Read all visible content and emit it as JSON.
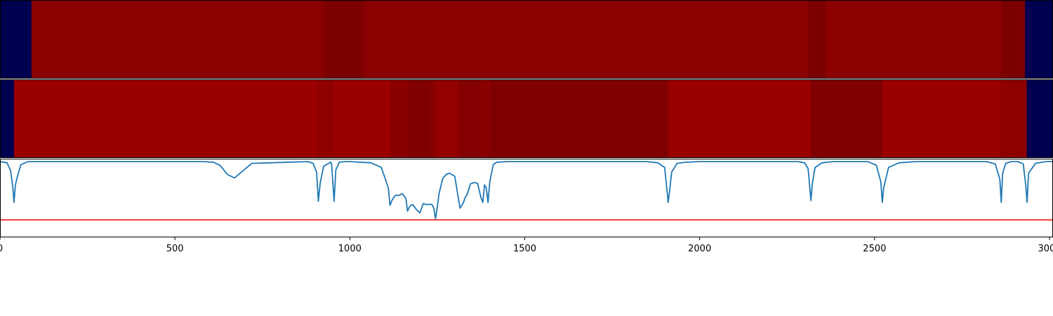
{
  "chart_data": [
    {
      "type": "heatmap",
      "xlim": [
        0,
        3010
      ],
      "segments": [
        {
          "start": 0,
          "end": 90,
          "color": "#000050"
        },
        {
          "start": 90,
          "end": 925,
          "color": "#8b0000"
        },
        {
          "start": 925,
          "end": 1040,
          "color": "#7d0000"
        },
        {
          "start": 1040,
          "end": 2310,
          "color": "#8b0000"
        },
        {
          "start": 2310,
          "end": 2360,
          "color": "#7d0000"
        },
        {
          "start": 2360,
          "end": 2862,
          "color": "#8b0000"
        },
        {
          "start": 2862,
          "end": 2930,
          "color": "#7d0000"
        },
        {
          "start": 2930,
          "end": 3010,
          "color": "#000050"
        }
      ]
    },
    {
      "type": "heatmap",
      "xlim": [
        0,
        3010
      ],
      "segments": [
        {
          "start": 0,
          "end": 40,
          "color": "#000050"
        },
        {
          "start": 40,
          "end": 905,
          "color": "#9a0000"
        },
        {
          "start": 905,
          "end": 955,
          "color": "#900000"
        },
        {
          "start": 955,
          "end": 1115,
          "color": "#9a0000"
        },
        {
          "start": 1115,
          "end": 1170,
          "color": "#8a0000"
        },
        {
          "start": 1170,
          "end": 1230,
          "color": "#800000"
        },
        {
          "start": 1230,
          "end": 1245,
          "color": "#880000"
        },
        {
          "start": 1245,
          "end": 1310,
          "color": "#920000"
        },
        {
          "start": 1310,
          "end": 1375,
          "color": "#850000"
        },
        {
          "start": 1375,
          "end": 1400,
          "color": "#8a0000"
        },
        {
          "start": 1400,
          "end": 1910,
          "color": "#7e0000"
        },
        {
          "start": 1910,
          "end": 2318,
          "color": "#9a0000"
        },
        {
          "start": 2318,
          "end": 2522,
          "color": "#7e0000"
        },
        {
          "start": 2522,
          "end": 2860,
          "color": "#9a0000"
        },
        {
          "start": 2860,
          "end": 2935,
          "color": "#8e0000"
        },
        {
          "start": 2935,
          "end": 3010,
          "color": "#000050"
        }
      ]
    },
    {
      "type": "line",
      "xlim": [
        0,
        3010
      ],
      "ylim": [
        -0.3,
        1.05
      ],
      "xticks": [
        0,
        500,
        1000,
        1500,
        2000,
        2500,
        3000
      ],
      "xticklabels": [
        "0",
        "500",
        "1000",
        "1500",
        "2000",
        "2500",
        "3000"
      ],
      "threshold": 0.0,
      "threshold_color": "#ff0000",
      "line_color": "#1f77b4",
      "x": [
        0,
        20,
        30,
        36,
        40,
        44,
        50,
        60,
        80,
        100,
        580,
        610,
        630,
        650,
        670,
        690,
        720,
        880,
        895,
        905,
        910,
        915,
        925,
        945,
        948,
        955,
        960,
        970,
        985,
        1000,
        1060,
        1090,
        1110,
        1115,
        1120,
        1125,
        1130,
        1140,
        1150,
        1160,
        1165,
        1170,
        1175,
        1180,
        1190,
        1200,
        1210,
        1220,
        1230,
        1235,
        1240,
        1245,
        1250,
        1255,
        1265,
        1275,
        1285,
        1300,
        1310,
        1315,
        1325,
        1330,
        1335,
        1345,
        1355,
        1365,
        1375,
        1380,
        1385,
        1390,
        1395,
        1400,
        1410,
        1420,
        1450,
        1850,
        1880,
        1900,
        1910,
        1915,
        1920,
        1935,
        1960,
        2000,
        2280,
        2300,
        2310,
        2318,
        2322,
        2330,
        2350,
        2380,
        2480,
        2505,
        2518,
        2522,
        2526,
        2540,
        2570,
        2620,
        2820,
        2845,
        2858,
        2862,
        2866,
        2875,
        2890,
        2910,
        2925,
        2932,
        2936,
        2940,
        2960,
        2990,
        3010
      ],
      "y": [
        1.0,
        0.98,
        0.85,
        0.6,
        0.3,
        0.6,
        0.75,
        0.95,
        1.0,
        1.0,
        1.0,
        0.99,
        0.93,
        0.78,
        0.72,
        0.82,
        0.97,
        1.0,
        0.97,
        0.82,
        0.32,
        0.62,
        0.92,
        0.99,
        0.95,
        0.32,
        0.86,
        0.99,
        1.0,
        1.0,
        0.98,
        0.9,
        0.55,
        0.25,
        0.33,
        0.38,
        0.42,
        0.42,
        0.45,
        0.37,
        0.15,
        0.22,
        0.25,
        0.26,
        0.18,
        0.12,
        0.28,
        0.26,
        0.27,
        0.26,
        0.2,
        0.02,
        0.22,
        0.45,
        0.7,
        0.78,
        0.8,
        0.75,
        0.38,
        0.2,
        0.3,
        0.39,
        0.43,
        0.62,
        0.64,
        0.63,
        0.38,
        0.3,
        0.6,
        0.55,
        0.3,
        0.65,
        0.95,
        0.99,
        1.0,
        1.0,
        0.98,
        0.9,
        0.3,
        0.55,
        0.82,
        0.97,
        0.99,
        1.0,
        1.0,
        0.98,
        0.88,
        0.33,
        0.62,
        0.9,
        0.98,
        1.0,
        1.0,
        0.94,
        0.65,
        0.3,
        0.55,
        0.9,
        0.98,
        1.0,
        1.0,
        0.96,
        0.7,
        0.3,
        0.8,
        0.97,
        1.0,
        1.0,
        0.96,
        0.6,
        0.3,
        0.8,
        0.97,
        1.0,
        1.0
      ]
    }
  ]
}
